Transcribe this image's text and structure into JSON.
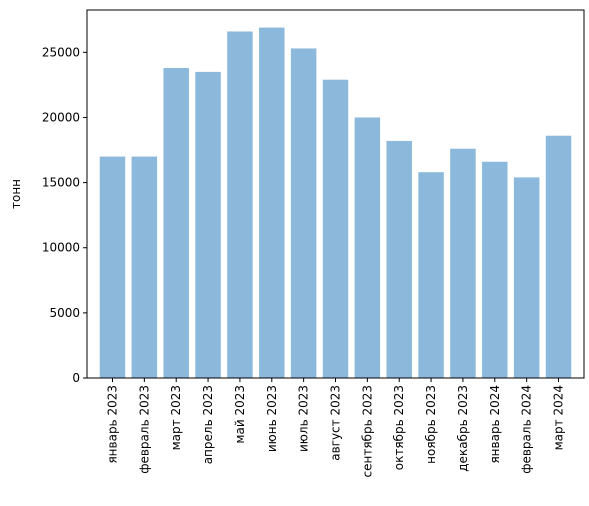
{
  "chart_data": {
    "type": "bar",
    "title": "",
    "xlabel": "",
    "ylabel": "тонн",
    "categories": [
      "январь 2023",
      "февраль 2023",
      "март 2023",
      "апрель 2023",
      "май 2023",
      "июнь 2023",
      "июль 2023",
      "август 2023",
      "сентябрь 2023",
      "октябрь 2023",
      "ноябрь 2023",
      "декабрь 2023",
      "январь 2024",
      "февраль 2024",
      "март 2024"
    ],
    "values": [
      17000,
      17000,
      23800,
      23500,
      26600,
      26900,
      25300,
      22900,
      20000,
      18200,
      15800,
      17600,
      16600,
      15400,
      18600
    ],
    "ylim": [
      0,
      28250
    ],
    "yticks": [
      0,
      5000,
      10000,
      15000,
      20000,
      25000
    ],
    "grid": false,
    "bar_color": "#8cb9db"
  }
}
